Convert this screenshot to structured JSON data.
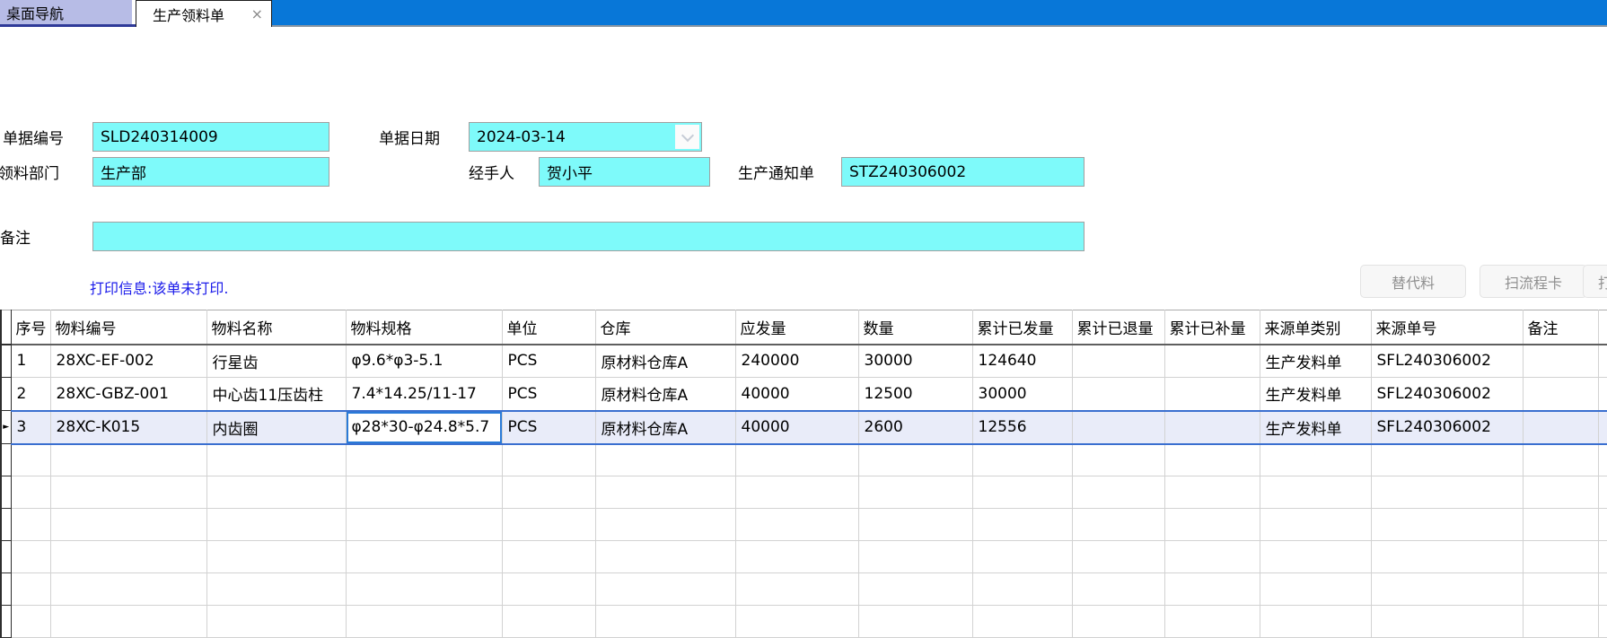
{
  "window": {
    "tabs": [
      {
        "label": "桌面导航"
      },
      {
        "label": "生产领料单",
        "close_glyph": "×"
      }
    ]
  },
  "form": {
    "doc_no": {
      "label": "单据编号",
      "value": "SLD240314009"
    },
    "doc_date": {
      "label": "单据日期",
      "value": "2024-03-14"
    },
    "dept": {
      "label": "领料部门",
      "value": "生产部"
    },
    "handler": {
      "label": "经手人",
      "value": "贺小平"
    },
    "production_notice": {
      "label": "生产通知单",
      "value": "STZ240306002"
    },
    "remark": {
      "label": "备注",
      "value": ""
    }
  },
  "print_info": "打印信息:该单未打印.",
  "toolbar": {
    "buttons": [
      {
        "label": "替代料"
      },
      {
        "label": "扫流程卡"
      },
      {
        "label": "打"
      }
    ]
  },
  "grid": {
    "columns": [
      "序号",
      "物料编号",
      "物料名称",
      "物料规格",
      "单位",
      "仓库",
      "应发量",
      "数量",
      "累计已发量",
      "累计已退量",
      "累计已补量",
      "来源单类别",
      "来源单号",
      "备注"
    ],
    "rows": [
      [
        "1",
        "28XC-EF-002",
        "行星齿",
        "φ9.6*φ3-5.1",
        "PCS",
        "原材料仓库A",
        "240000",
        "30000",
        "124640",
        "",
        "",
        "生产发料单",
        "SFL240306002",
        ""
      ],
      [
        "2",
        "28XC-GBZ-001",
        "中心齿11压齿柱",
        "7.4*14.25/11-17",
        "PCS",
        "原材料仓库A",
        "40000",
        "12500",
        "30000",
        "",
        "",
        "生产发料单",
        "SFL240306002",
        ""
      ],
      [
        "3",
        "28XC-K015",
        "内齿圈",
        "φ28*30-φ24.8*5.7",
        "PCS",
        "原材料仓库A",
        "40000",
        "2600",
        "12556",
        "",
        "",
        "生产发料单",
        "SFL240306002",
        ""
      ]
    ],
    "selected_row": 3,
    "selected_column": "物料规格",
    "row_indicator_glyph": "►",
    "empty_rows": 6
  },
  "colors": {
    "accent_blue": "#0877d8",
    "inactive_tab": "#b7bce6",
    "tab_underline": "#2f3a99",
    "field_cyan": "#7efafa",
    "link_blue": "#1a1aea",
    "selection_bg": "#e9ecf9",
    "selection_border": "#3a6fd0",
    "selected_cell_border": "#2a7ad8"
  }
}
